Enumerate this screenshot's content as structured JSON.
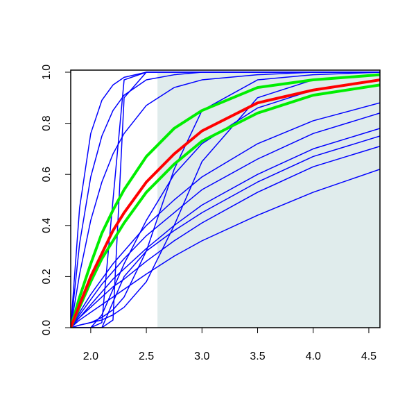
{
  "chart_data": {
    "type": "line",
    "x": [
      1.82,
      1.9,
      2.0,
      2.1,
      2.2,
      2.3,
      2.5,
      2.75,
      3.0,
      3.5,
      4.0,
      4.6
    ],
    "xlim": [
      1.82,
      4.6
    ],
    "ylim": [
      0,
      1
    ],
    "xticks": [
      {
        "value": 2.0,
        "label": "2.0"
      },
      2.5,
      {
        "value": 3.0,
        "label": "3.0"
      },
      3.5,
      {
        "value": 4.0,
        "label": "4.0"
      },
      4.5
    ],
    "yticks": [
      {
        "value": 0.0,
        "label": "0.0"
      },
      0.2,
      0.4,
      0.6,
      0.8,
      {
        "value": 1.0,
        "label": "1.0"
      }
    ],
    "shaded_region": {
      "xlim": [
        2.6,
        4.6
      ],
      "color": "#e0ecec"
    },
    "series": [
      {
        "color": "#0000ff",
        "values": [
          0,
          0.03,
          0.06,
          0.09,
          0.12,
          0.15,
          0.21,
          0.28,
          0.34,
          0.44,
          0.53,
          0.62
        ]
      },
      {
        "color": "#0000ff",
        "values": [
          0,
          0.04,
          0.08,
          0.12,
          0.16,
          0.19,
          0.26,
          0.34,
          0.41,
          0.53,
          0.63,
          0.71
        ]
      },
      {
        "color": "#0000ff",
        "values": [
          0,
          0.04,
          0.09,
          0.14,
          0.19,
          0.23,
          0.31,
          0.4,
          0.48,
          0.6,
          0.7,
          0.78
        ]
      },
      {
        "color": "#0000ff",
        "values": [
          0,
          0.05,
          0.11,
          0.17,
          0.22,
          0.27,
          0.36,
          0.45,
          0.54,
          0.66,
          0.76,
          0.84
        ]
      },
      {
        "color": "#0000ff",
        "values": [
          0,
          0.06,
          0.13,
          0.19,
          0.25,
          0.3,
          0.4,
          0.5,
          0.59,
          0.72,
          0.81,
          0.88
        ]
      },
      {
        "color": "#0000ff",
        "values": [
          0,
          0.47,
          0.76,
          0.89,
          0.95,
          0.98,
          1,
          1,
          1,
          1,
          1,
          1
        ]
      },
      {
        "color": "#0000ff",
        "values": [
          0,
          0.33,
          0.59,
          0.75,
          0.85,
          0.91,
          0.97,
          0.99,
          1,
          1,
          1,
          1
        ]
      },
      {
        "color": "#0000ff",
        "values": [
          0,
          0.21,
          0.42,
          0.57,
          0.68,
          0.76,
          0.87,
          0.94,
          0.97,
          0.99,
          1,
          1
        ]
      },
      {
        "color": "#0000ff",
        "values": [
          0,
          0,
          0,
          0.02,
          0.5,
          0.97,
          1,
          1,
          1,
          1,
          1,
          1
        ]
      },
      {
        "color": "#0000ff",
        "values": [
          0,
          0,
          0,
          0,
          0.03,
          0.9,
          1,
          1,
          1,
          1,
          1,
          1
        ]
      },
      {
        "color": "#0000ff",
        "values": [
          0,
          0.01,
          0.02,
          0.04,
          0.07,
          0.12,
          0.3,
          0.62,
          0.85,
          0.97,
          0.99,
          1
        ]
      },
      {
        "color": "#0000ff",
        "values": [
          0,
          0.01,
          0.02,
          0.03,
          0.05,
          0.08,
          0.18,
          0.4,
          0.65,
          0.9,
          0.97,
          0.99
        ]
      },
      {
        "color": "#0000ff",
        "values": [
          0,
          0,
          0,
          0.05,
          0.15,
          0.25,
          0.42,
          0.6,
          0.72,
          0.86,
          0.93,
          0.97
        ]
      },
      {
        "color": "#0000ff",
        "values": [
          0,
          0,
          0,
          0,
          0.1,
          0.2,
          0.3,
          0.38,
          0.45,
          0.57,
          0.67,
          0.75
        ]
      },
      {
        "color": "#00ee00",
        "width": 4,
        "values": [
          0,
          0.12,
          0.25,
          0.37,
          0.46,
          0.54,
          0.67,
          0.78,
          0.85,
          0.94,
          0.97,
          0.99
        ]
      },
      {
        "color": "#00ee00",
        "width": 4,
        "values": [
          0,
          0.08,
          0.18,
          0.27,
          0.34,
          0.41,
          0.53,
          0.64,
          0.73,
          0.84,
          0.91,
          0.95
        ]
      },
      {
        "color": "#ff0000",
        "width": 4,
        "values": [
          0,
          0.09,
          0.2,
          0.29,
          0.38,
          0.45,
          0.57,
          0.68,
          0.77,
          0.88,
          0.93,
          0.97
        ]
      }
    ]
  }
}
